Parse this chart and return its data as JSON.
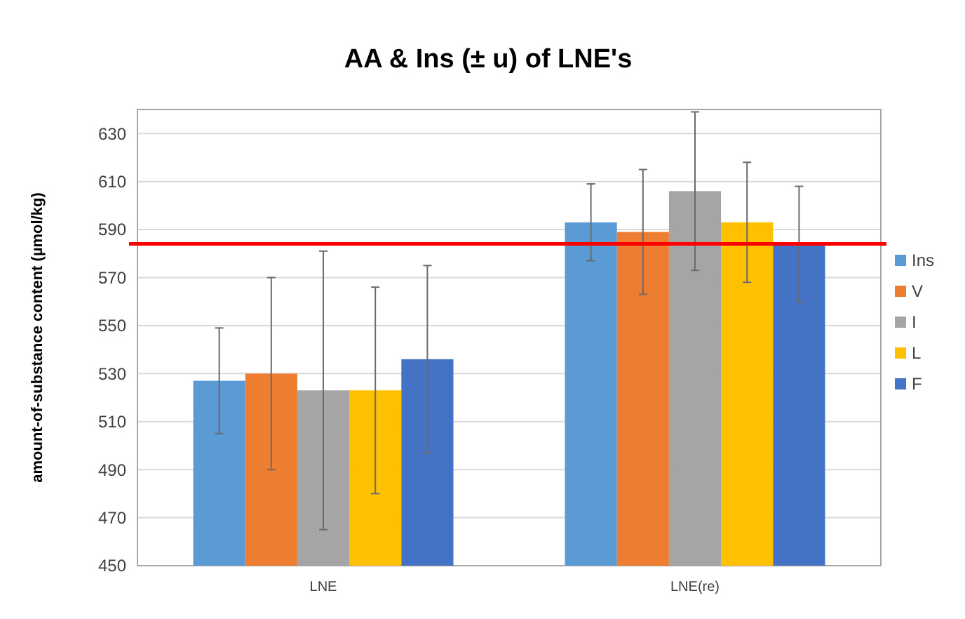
{
  "chart_data": {
    "type": "bar",
    "title": "AA & Ins (± u) of LNE's",
    "ylabel": "amount-of-substance content (µmol/kg)",
    "categories": [
      "LNE",
      "LNE(re)"
    ],
    "series": [
      {
        "name": "Ins",
        "color": "#5b9bd5",
        "values": [
          527,
          593
        ],
        "errors": [
          22,
          16
        ]
      },
      {
        "name": "V",
        "color": "#ed7d31",
        "values": [
          530,
          589
        ],
        "errors": [
          40,
          26
        ]
      },
      {
        "name": "I",
        "color": "#a5a5a5",
        "values": [
          523,
          606
        ],
        "errors": [
          58,
          33
        ]
      },
      {
        "name": "L",
        "color": "#ffc000",
        "values": [
          523,
          593
        ],
        "errors": [
          43,
          25
        ]
      },
      {
        "name": "F",
        "color": "#4472c4",
        "values": [
          536,
          584
        ],
        "errors": [
          39,
          24
        ]
      }
    ],
    "ylim": [
      450,
      640
    ],
    "yticks": [
      450,
      470,
      490,
      510,
      530,
      550,
      570,
      590,
      610,
      630
    ],
    "grid": "y",
    "legend": "right",
    "ref_lines": [
      {
        "axis": "y",
        "value": 584,
        "color": "#ff0000"
      }
    ]
  }
}
